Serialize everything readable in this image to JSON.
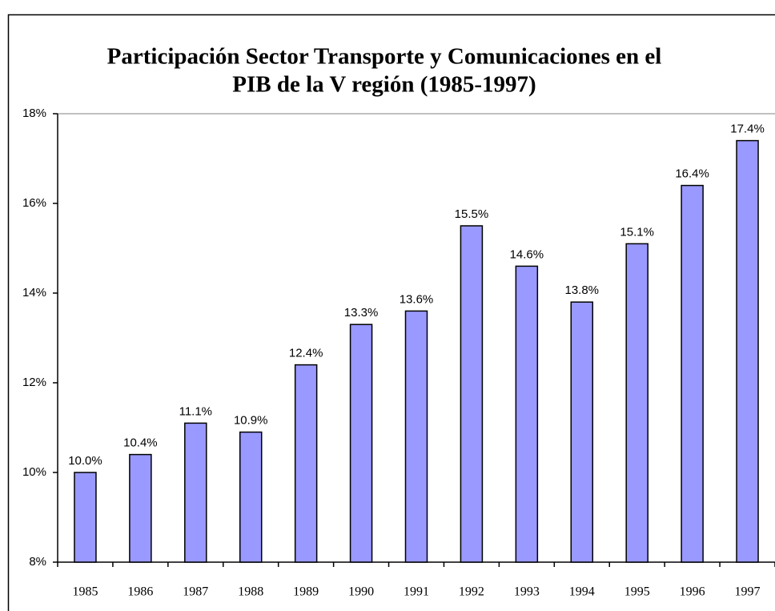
{
  "chart_data": {
    "type": "bar",
    "title": [
      "Participación Sector Transporte y Comunicaciones en el",
      "PIB de la V región (1985-1997)"
    ],
    "categories": [
      "1985",
      "1986",
      "1987",
      "1988",
      "1989",
      "1990",
      "1991",
      "1992",
      "1993",
      "1994",
      "1995",
      "1996",
      "1997"
    ],
    "values": [
      10.0,
      10.4,
      11.1,
      10.9,
      12.4,
      13.3,
      13.6,
      15.5,
      14.6,
      13.8,
      15.1,
      16.4,
      17.4
    ],
    "value_labels": [
      "10.0%",
      "10.4%",
      "11.1%",
      "10.9%",
      "12.4%",
      "13.3%",
      "13.6%",
      "15.5%",
      "14.6%",
      "13.8%",
      "15.1%",
      "16.4%",
      "17.4%"
    ],
    "color": "#9999ff",
    "ylim": [
      8,
      18
    ],
    "yticks": [
      {
        "value": 8,
        "label": "8%"
      },
      {
        "value": 10,
        "label": "10%"
      },
      {
        "value": 12,
        "label": "12%"
      },
      {
        "value": 14,
        "label": "14%"
      },
      {
        "value": 16,
        "label": "16%"
      },
      {
        "value": 18,
        "label": "18%"
      }
    ],
    "grid": false
  }
}
